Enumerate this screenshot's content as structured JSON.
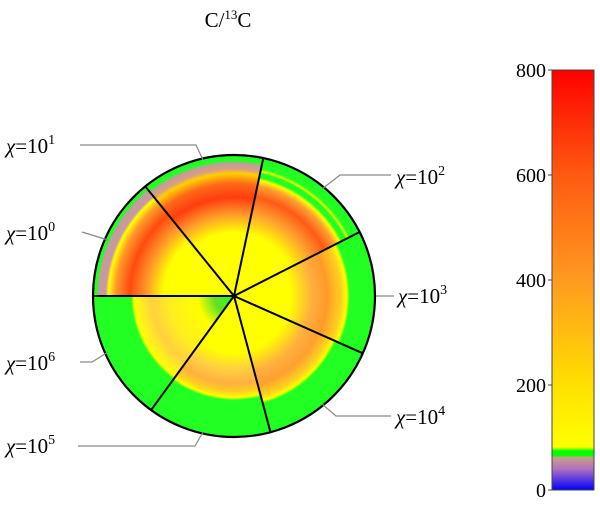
{
  "chart_data": {
    "type": "polar-sector-heatmap",
    "title": "C/",
    "title_sup": "13",
    "title_end": "C",
    "colorbar": {
      "min": 0,
      "max": 800,
      "ticks": [
        "0",
        "200",
        "400",
        "600",
        "800"
      ],
      "stops": [
        {
          "value": 0,
          "color": "#0000ff"
        },
        {
          "value": 40,
          "color": "#b070c0"
        },
        {
          "value": 62,
          "color": "#c8a088"
        },
        {
          "value": 66,
          "color": "#00ff00"
        },
        {
          "value": 74,
          "color": "#00ff00"
        },
        {
          "value": 82,
          "color": "#ffff00"
        },
        {
          "value": 200,
          "color": "#ffe000"
        },
        {
          "value": 400,
          "color": "#ff9a20"
        },
        {
          "value": 600,
          "color": "#ff5a10"
        },
        {
          "value": 800,
          "color": "#ff0000"
        }
      ]
    },
    "sectors": [
      {
        "chi": "10",
        "exp": "0",
        "start_deg": 180,
        "end_deg": 231,
        "profile": [
          [
            0,
            "#ffff00"
          ],
          [
            0.5,
            "#ffff00"
          ],
          [
            0.62,
            "#ff9a2a"
          ],
          [
            0.74,
            "#ff4a10"
          ],
          [
            0.84,
            "#ff9a2a"
          ],
          [
            0.89,
            "#ffff00"
          ],
          [
            0.91,
            "#c89aa0"
          ],
          [
            0.96,
            "#c89aa0"
          ],
          [
            0.975,
            "#22ff22"
          ],
          [
            1,
            "#22ff22"
          ]
        ]
      },
      {
        "chi": "10",
        "exp": "1",
        "start_deg": 231,
        "end_deg": 282,
        "profile": [
          [
            0,
            "#ffff00"
          ],
          [
            0.45,
            "#ffff00"
          ],
          [
            0.58,
            "#ff9a2a"
          ],
          [
            0.7,
            "#ff3d10"
          ],
          [
            0.8,
            "#ff6a18"
          ],
          [
            0.87,
            "#ffd000"
          ],
          [
            0.9,
            "#d9a080"
          ],
          [
            0.94,
            "#c89aa0"
          ],
          [
            0.96,
            "#22ff22"
          ],
          [
            1,
            "#22ff22"
          ]
        ]
      },
      {
        "chi": "10",
        "exp": "2",
        "start_deg": 282,
        "end_deg": 333,
        "profile": [
          [
            0,
            "#ffff00"
          ],
          [
            0.45,
            "#ffff00"
          ],
          [
            0.6,
            "#ffa030"
          ],
          [
            0.72,
            "#ff5a18"
          ],
          [
            0.8,
            "#ffa030"
          ],
          [
            0.84,
            "#ffff00"
          ],
          [
            0.86,
            "#22ff22"
          ],
          [
            0.89,
            "#22ff22"
          ],
          [
            0.905,
            "#ffff00"
          ],
          [
            0.92,
            "#22ff22"
          ],
          [
            1,
            "#22ff22"
          ]
        ]
      },
      {
        "chi": "10",
        "exp": "3",
        "start_deg": 333,
        "end_deg": 384,
        "profile": [
          [
            0,
            "#ffff00"
          ],
          [
            0.4,
            "#ffff00"
          ],
          [
            0.55,
            "#ffb040"
          ],
          [
            0.66,
            "#ff9a2a"
          ],
          [
            0.76,
            "#ffd020"
          ],
          [
            0.8,
            "#ffff00"
          ],
          [
            0.82,
            "#22ff22"
          ],
          [
            1,
            "#22ff22"
          ]
        ]
      },
      {
        "chi": "10",
        "exp": "4",
        "start_deg": 384,
        "end_deg": 435,
        "profile": [
          [
            0,
            "#ffff00"
          ],
          [
            0.4,
            "#ffff00"
          ],
          [
            0.55,
            "#ffb040"
          ],
          [
            0.65,
            "#ffa030"
          ],
          [
            0.73,
            "#ffd020"
          ],
          [
            0.77,
            "#ffff00"
          ],
          [
            0.79,
            "#22ff22"
          ],
          [
            1,
            "#22ff22"
          ]
        ]
      },
      {
        "chi": "10",
        "exp": "5",
        "start_deg": 435,
        "end_deg": 486,
        "profile": [
          [
            0,
            "#ffff00"
          ],
          [
            0.4,
            "#ffff00"
          ],
          [
            0.52,
            "#ffd040"
          ],
          [
            0.62,
            "#ffb040"
          ],
          [
            0.68,
            "#ffd020"
          ],
          [
            0.72,
            "#ffff00"
          ],
          [
            0.74,
            "#22ff22"
          ],
          [
            1,
            "#22ff22"
          ]
        ]
      },
      {
        "chi": "10",
        "exp": "6",
        "start_deg": 486,
        "end_deg": 540,
        "profile": [
          [
            0,
            "#22ff22"
          ],
          [
            0.14,
            "#66e022"
          ],
          [
            0.26,
            "#ffff00"
          ],
          [
            0.46,
            "#ffee20"
          ],
          [
            0.58,
            "#ffd040"
          ],
          [
            0.66,
            "#ffee20"
          ],
          [
            0.71,
            "#ffff00"
          ],
          [
            0.73,
            "#22ff22"
          ],
          [
            1,
            "#22ff22"
          ]
        ]
      }
    ]
  }
}
